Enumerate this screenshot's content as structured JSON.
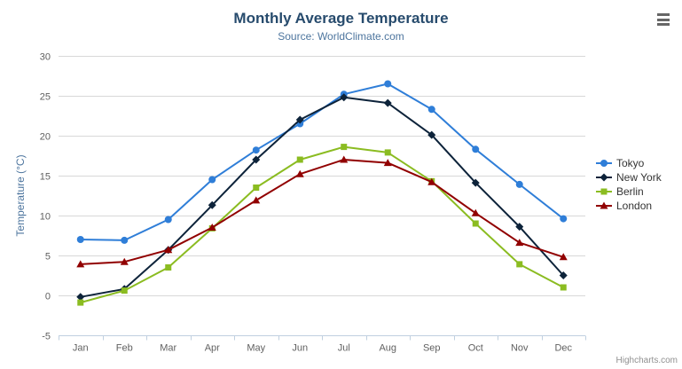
{
  "header": {
    "menu_icon": "hamburger-icon"
  },
  "credit": "Highcharts.com",
  "chart_data": {
    "type": "line",
    "title": "Monthly Average Temperature",
    "subtitle": "Source: WorldClimate.com",
    "categories": [
      "Jan",
      "Feb",
      "Mar",
      "Apr",
      "May",
      "Jun",
      "Jul",
      "Aug",
      "Sep",
      "Oct",
      "Nov",
      "Dec"
    ],
    "series": [
      {
        "name": "Tokyo",
        "color": "#2f7ed8",
        "marker": "circle",
        "values": [
          7.0,
          6.9,
          9.5,
          14.5,
          18.2,
          21.5,
          25.2,
          26.5,
          23.3,
          18.3,
          13.9,
          9.6
        ]
      },
      {
        "name": "New York",
        "color": "#0d233a",
        "marker": "diamond",
        "values": [
          -0.2,
          0.8,
          5.7,
          11.3,
          17.0,
          22.0,
          24.8,
          24.1,
          20.1,
          14.1,
          8.6,
          2.5
        ]
      },
      {
        "name": "Berlin",
        "color": "#8bbc21",
        "marker": "square",
        "values": [
          -0.9,
          0.6,
          3.5,
          8.4,
          13.5,
          17.0,
          18.6,
          17.9,
          14.3,
          9.0,
          3.9,
          1.0
        ]
      },
      {
        "name": "London",
        "color": "#910000",
        "marker": "triangle",
        "values": [
          3.9,
          4.2,
          5.7,
          8.5,
          11.9,
          15.2,
          17.0,
          16.6,
          14.2,
          10.3,
          6.6,
          4.8
        ]
      }
    ],
    "xlabel": "",
    "ylabel": "Temperature (°C)",
    "ylim": [
      -5,
      30
    ],
    "ytick_step": 5,
    "grid": true,
    "legend_position": "right",
    "colors": {
      "title": "#274b6d",
      "subtitle": "#4d759e",
      "axis_title": "#4d759e",
      "tick_label": "#606060",
      "gridline": "#d8d8d8",
      "axis_line": "#c0d0e0",
      "legend_text": "#333333"
    }
  }
}
